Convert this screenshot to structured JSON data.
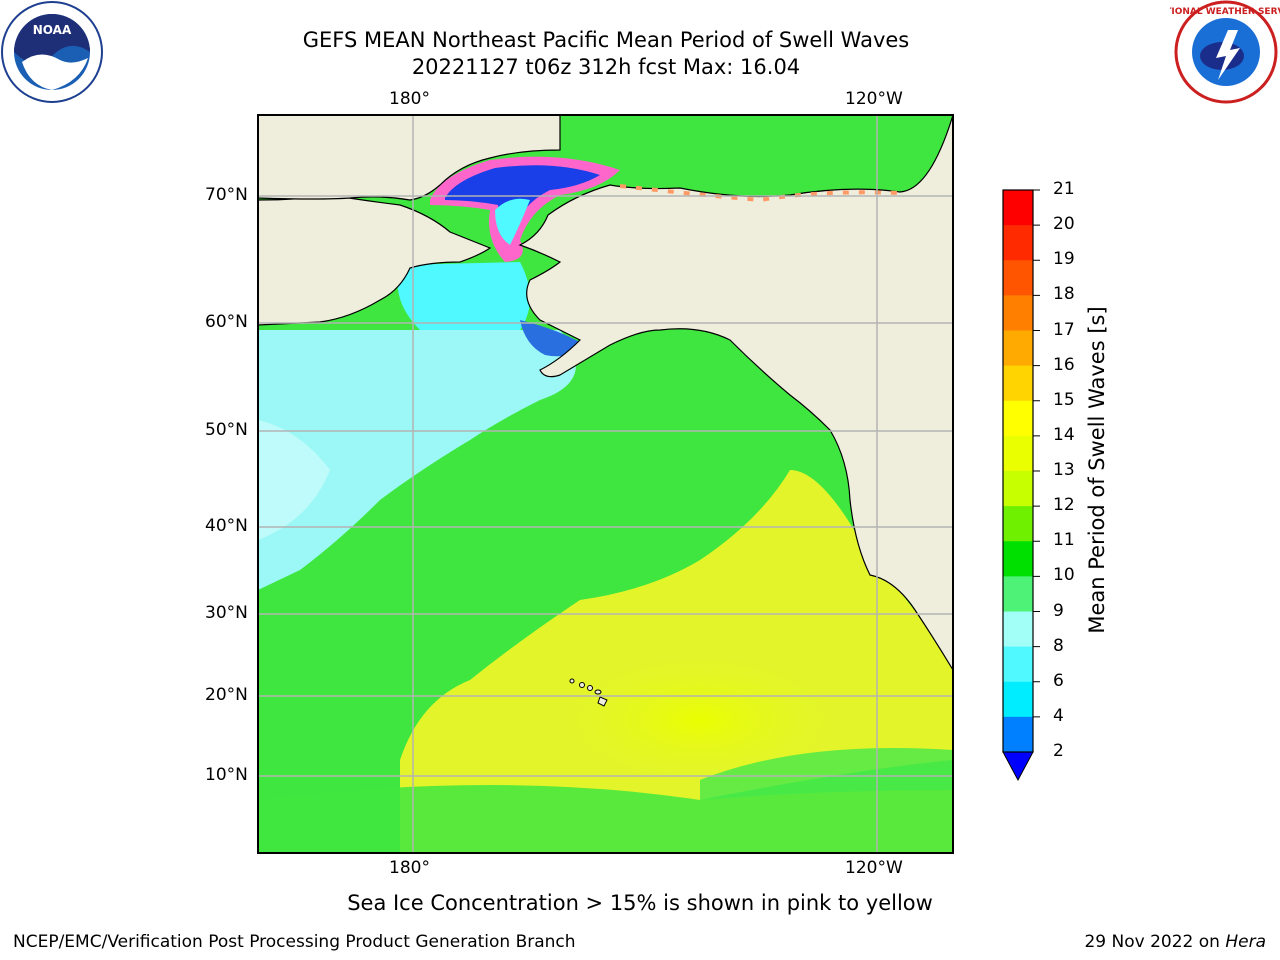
{
  "header": {
    "title_line1": "GEFS MEAN Northeast Pacific Mean Period of Swell Waves",
    "title_line2": "20221127 t06z 312h fcst   Max: 16.04"
  },
  "map": {
    "lon_labels_top": [
      "180°",
      "120°W"
    ],
    "lon_labels_bottom": [
      "180°",
      "120°W"
    ],
    "lat_labels": [
      "70°N",
      "60°N",
      "50°N",
      "40°N",
      "30°N",
      "20°N",
      "10°N"
    ],
    "colors": {
      "land": "#efeedd",
      "ocean_green": "#3fe63f",
      "ocean_yellow": "#e3f52a",
      "ocean_cyan": "#9cf7f7",
      "ice_blue": "#1a4ff0"
    }
  },
  "colorbar": {
    "label": "Mean Period of Swell Waves [s]",
    "ticks": [
      "21",
      "20",
      "19",
      "18",
      "17",
      "16",
      "15",
      "14",
      "13",
      "12",
      "11",
      "10",
      "9",
      "8",
      "6",
      "4",
      "2"
    ],
    "colors": [
      "#ff0000",
      "#ff2a00",
      "#ff5500",
      "#ff8000",
      "#ffaa00",
      "#ffd400",
      "#ffff00",
      "#eaff00",
      "#c8ff00",
      "#6ef000",
      "#00e000",
      "#4ef276",
      "#a2fff8",
      "#4ff9ff",
      "#00ecff",
      "#0080ff"
    ],
    "under_color": "#0000ff"
  },
  "note": "Sea Ice Concentration > 15% is shown in pink to yellow",
  "footer": {
    "left": "NCEP/EMC/Verification Post Processing Product Generation Branch",
    "right_date": "29 Nov 2022 on ",
    "right_machine": "Hera"
  },
  "logos": {
    "left": "NOAA",
    "right": "NATIONAL WEATHER SERVICE"
  }
}
